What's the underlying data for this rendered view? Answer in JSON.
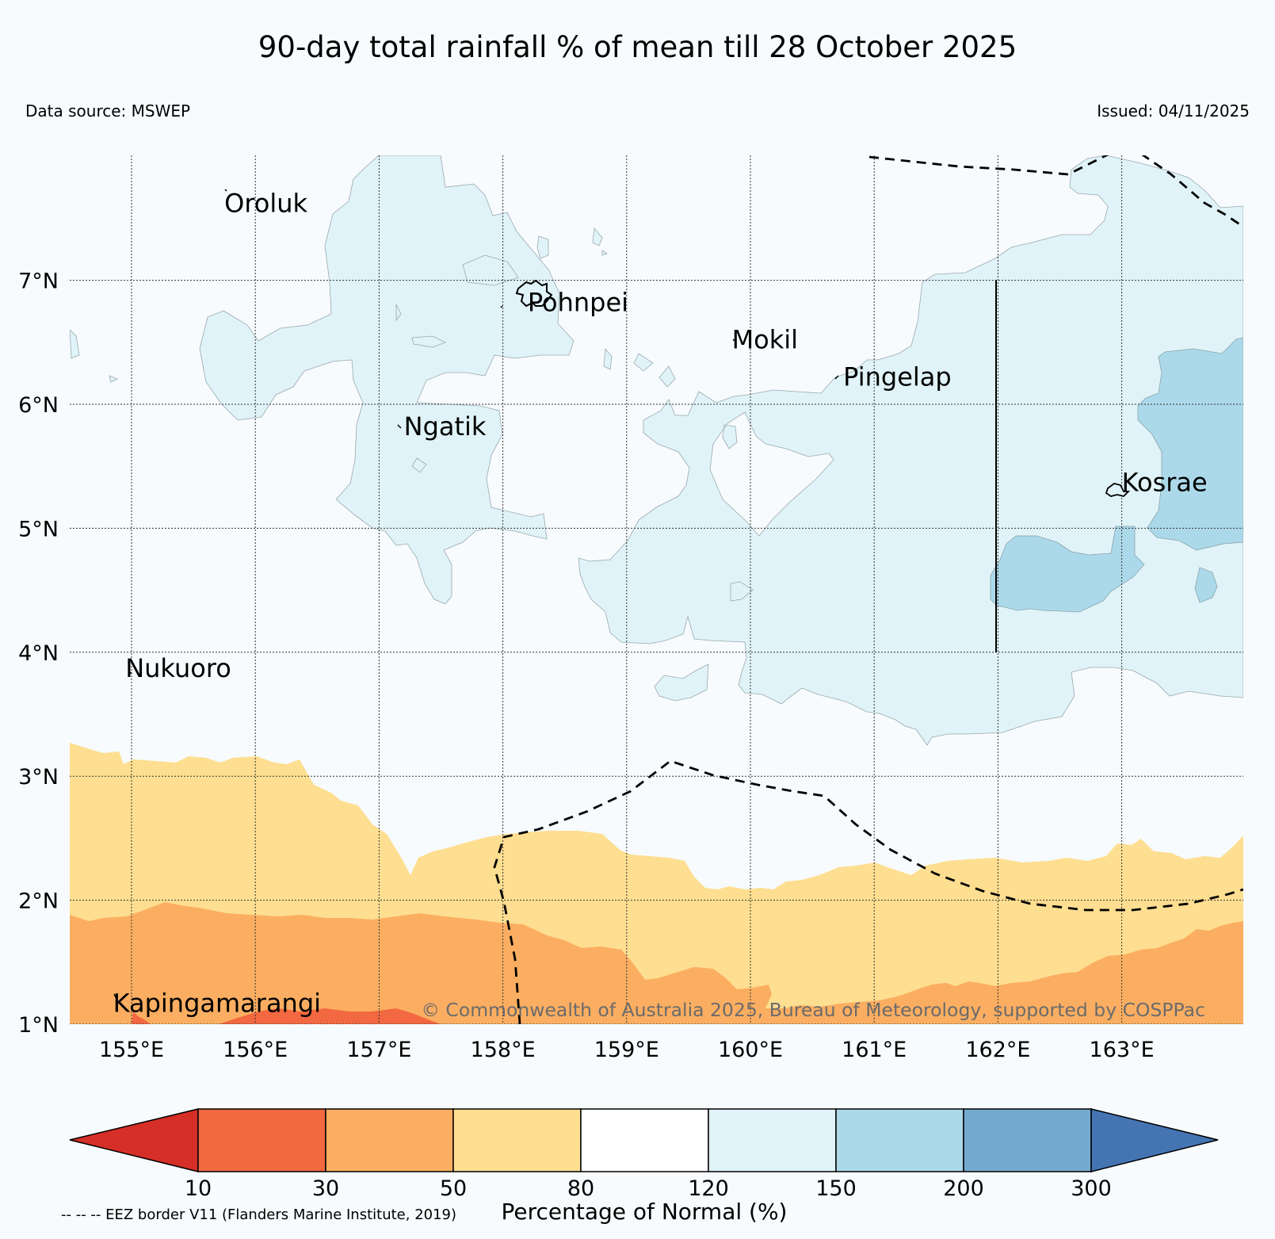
{
  "title": "90-day total rainfall % of mean till 28 October 2025",
  "data_source": "Data source: MSWEP",
  "issued": "Issued: 04/11/2025",
  "copyright": "© Commonwealth of Australia 2025, Bureau of Meteorology, supported by COSPPac",
  "eez_note": "-- -- -- EEZ border V11 (Flanders Marine Institute, 2019)",
  "map": {
    "lon_range": [
      154.5,
      164.0
    ],
    "lat_range": [
      1.0,
      8.0
    ],
    "lat_ticks": [
      {
        "value": 7,
        "label": "7°N"
      },
      {
        "value": 6,
        "label": "6°N"
      },
      {
        "value": 5,
        "label": "5°N"
      },
      {
        "value": 4,
        "label": "4°N"
      },
      {
        "value": 3,
        "label": "3°N"
      },
      {
        "value": 2,
        "label": "2°N"
      },
      {
        "value": 1,
        "label": "1°N"
      }
    ],
    "lon_ticks": [
      {
        "value": 155,
        "label": "155°E"
      },
      {
        "value": 156,
        "label": "156°E"
      },
      {
        "value": 157,
        "label": "157°E"
      },
      {
        "value": 158,
        "label": "158°E"
      },
      {
        "value": 159,
        "label": "159°E"
      },
      {
        "value": 160,
        "label": "160°E"
      },
      {
        "value": 161,
        "label": "161°E"
      },
      {
        "value": 162,
        "label": "162°E"
      },
      {
        "value": 163,
        "label": "163°E"
      }
    ],
    "places": [
      {
        "name": "Oroluk",
        "lon": 155.75,
        "lat": 7.55
      },
      {
        "name": "Pohnpei",
        "lon": 158.2,
        "lat": 6.75
      },
      {
        "name": "Mokil",
        "lon": 159.85,
        "lat": 6.45
      },
      {
        "name": "Pingelap",
        "lon": 160.75,
        "lat": 6.15
      },
      {
        "name": "Ngatik",
        "lon": 157.2,
        "lat": 5.75
      },
      {
        "name": "Kosrae",
        "lon": 163.0,
        "lat": 5.3
      },
      {
        "name": "Nukuoro",
        "lon": 154.95,
        "lat": 3.8
      },
      {
        "name": "Kapingamarangi",
        "lon": 154.85,
        "lat": 1.1
      }
    ]
  },
  "colorbar": {
    "label": "Percentage of Normal (%)",
    "ticks": [
      "10",
      "30",
      "50",
      "80",
      "120",
      "150",
      "200",
      "300"
    ],
    "colors": [
      "#d62f27",
      "#f26841",
      "#fbae61",
      "#fede90",
      "#ffffff",
      "#e0f3f8",
      "#abd9e9",
      "#74aad0",
      "#4574b3"
    ]
  }
}
